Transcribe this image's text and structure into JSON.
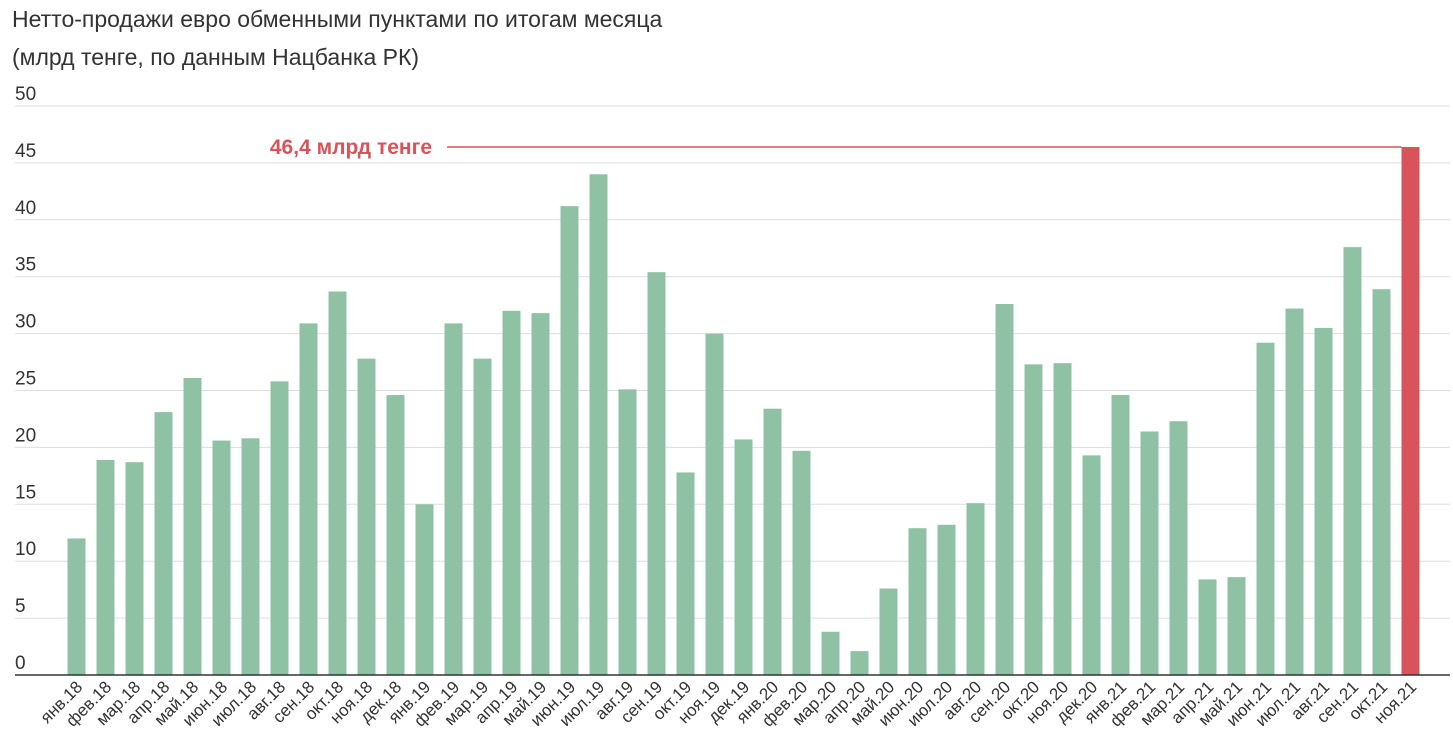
{
  "title_line1": "Нетто-продажи евро обменными пунктами по итогам месяца",
  "title_line2": "(млрд тенге, по данным Нацбанка РК)",
  "colors": {
    "bar": "#8fc2a5",
    "highlight": "#d9535a",
    "grid": "#dddddd",
    "axis": "#333333"
  },
  "chart_data": {
    "type": "bar",
    "title": "Нетто-продажи евро обменными пунктами по итогам месяца",
    "subtitle": "(млрд тенге, по данным Нацбанка РК)",
    "categories": [
      "янв.18",
      "фев.18",
      "мар.18",
      "апр.18",
      "май.18",
      "июн.18",
      "июл.18",
      "авг.18",
      "сен.18",
      "окт.18",
      "ноя.18",
      "дек.18",
      "янв.19",
      "фев.19",
      "мар.19",
      "апр.19",
      "май.19",
      "июн.19",
      "июл.19",
      "авг.19",
      "сен.19",
      "окт.19",
      "ноя.19",
      "дек.19",
      "янв.20",
      "фев.20",
      "мар.20",
      "апр.20",
      "май.20",
      "июн.20",
      "июл.20",
      "авг.20",
      "сен.20",
      "окт.20",
      "ноя.20",
      "дек.20",
      "янв.21",
      "фев.21",
      "мар.21",
      "апр.21",
      "май.21",
      "июн.21",
      "июл.21",
      "авг.21",
      "сен.21",
      "окт.21",
      "ноя.21"
    ],
    "values": [
      12.0,
      18.9,
      18.7,
      23.1,
      26.1,
      20.6,
      20.8,
      25.8,
      30.9,
      33.7,
      27.8,
      24.6,
      15.0,
      30.9,
      27.8,
      32.0,
      31.8,
      41.2,
      44.0,
      25.1,
      35.4,
      17.8,
      30.0,
      20.7,
      23.4,
      19.7,
      3.8,
      2.1,
      7.6,
      12.9,
      13.2,
      15.1,
      32.6,
      27.3,
      27.4,
      19.3,
      24.6,
      21.4,
      22.3,
      8.4,
      8.6,
      29.2,
      32.2,
      30.5,
      37.6,
      33.9,
      46.4
    ],
    "highlight_index": 46,
    "annotation": "46,4 млрд тенге",
    "yticks": [
      0,
      5,
      10,
      15,
      20,
      25,
      30,
      35,
      40,
      45,
      50
    ],
    "ylim": [
      0,
      50
    ],
    "xlabel": "",
    "ylabel": "",
    "grid": true,
    "legend": "none"
  }
}
